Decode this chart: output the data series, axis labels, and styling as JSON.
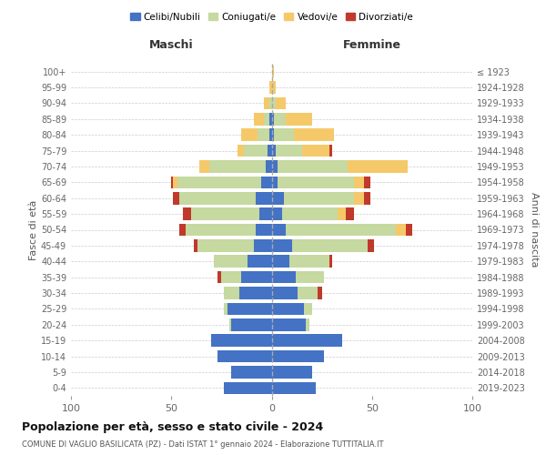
{
  "age_groups": [
    "0-4",
    "5-9",
    "10-14",
    "15-19",
    "20-24",
    "25-29",
    "30-34",
    "35-39",
    "40-44",
    "45-49",
    "50-54",
    "55-59",
    "60-64",
    "65-69",
    "70-74",
    "75-79",
    "80-84",
    "85-89",
    "90-94",
    "95-99",
    "100+"
  ],
  "birth_years": [
    "2019-2023",
    "2014-2018",
    "2009-2013",
    "2004-2008",
    "1999-2003",
    "1994-1998",
    "1989-1993",
    "1984-1988",
    "1979-1983",
    "1974-1978",
    "1969-1973",
    "1964-1968",
    "1959-1963",
    "1954-1958",
    "1949-1953",
    "1944-1948",
    "1939-1943",
    "1934-1938",
    "1929-1933",
    "1924-1928",
    "≤ 1923"
  ],
  "colors": {
    "celibi": "#4472C4",
    "coniugati": "#c5d9a0",
    "vedovi": "#f5c96a",
    "divorziati": "#c0392b"
  },
  "maschi": {
    "celibi": [
      24,
      20,
      27,
      30,
      20,
      22,
      16,
      15,
      12,
      9,
      8,
      6,
      8,
      5,
      3,
      2,
      1,
      1,
      0,
      0,
      0
    ],
    "coniugati": [
      0,
      0,
      0,
      0,
      1,
      2,
      8,
      10,
      17,
      28,
      35,
      34,
      38,
      42,
      28,
      12,
      6,
      3,
      1,
      0,
      0
    ],
    "vedovi": [
      0,
      0,
      0,
      0,
      0,
      0,
      0,
      0,
      0,
      0,
      0,
      0,
      0,
      2,
      5,
      3,
      8,
      5,
      3,
      1,
      0
    ],
    "divorziati": [
      0,
      0,
      0,
      0,
      0,
      0,
      0,
      2,
      0,
      2,
      3,
      4,
      3,
      1,
      0,
      0,
      0,
      0,
      0,
      0,
      0
    ]
  },
  "femmine": {
    "celibi": [
      22,
      20,
      26,
      35,
      17,
      16,
      13,
      12,
      9,
      10,
      7,
      5,
      6,
      3,
      3,
      2,
      1,
      1,
      0,
      0,
      0
    ],
    "coniugati": [
      0,
      0,
      0,
      0,
      2,
      4,
      10,
      14,
      20,
      38,
      55,
      28,
      35,
      38,
      35,
      13,
      10,
      6,
      2,
      0,
      0
    ],
    "vedovi": [
      0,
      0,
      0,
      0,
      0,
      0,
      0,
      0,
      0,
      0,
      5,
      4,
      5,
      5,
      30,
      14,
      20,
      13,
      5,
      2,
      1
    ],
    "divorziati": [
      0,
      0,
      0,
      0,
      0,
      0,
      2,
      0,
      1,
      3,
      3,
      4,
      3,
      3,
      0,
      1,
      0,
      0,
      0,
      0,
      0
    ]
  },
  "title": "Popolazione per età, sesso e stato civile - 2024",
  "subtitle": "COMUNE DI VAGLIO BASILICATA (PZ) - Dati ISTAT 1° gennaio 2024 - Elaborazione TUTTITALIA.IT",
  "xlabel_left": "Maschi",
  "xlabel_right": "Femmine",
  "ylabel_left": "Fasce di età",
  "ylabel_right": "Anni di nascita",
  "xlim": 100,
  "legend_labels": [
    "Celibi/Nubili",
    "Coniugati/e",
    "Vedovi/e",
    "Divorziati/e"
  ]
}
